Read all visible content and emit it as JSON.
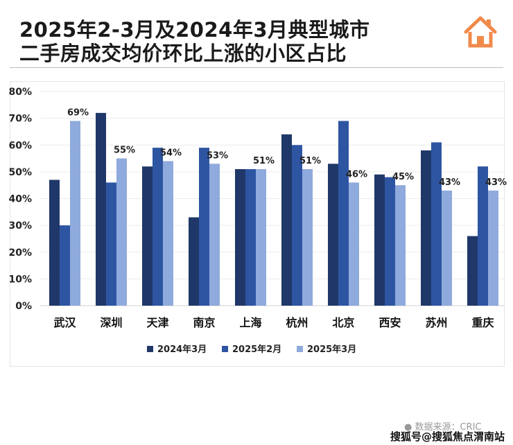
{
  "header": {
    "title_line1": "2025年2-3月及2024年3月典型城市",
    "title_line2": "二手房成交均价环比上涨的小区占比",
    "logo_icon": "house-icon"
  },
  "footer": {
    "source": "● 数据来源：CRIC",
    "watermark": "搜狐号@搜狐焦点渭南站"
  },
  "colors": {
    "s2024_3": "#1f3869",
    "s2025_2": "#2e55a2",
    "s2025_3": "#8faadc",
    "logo": "#f08a4b"
  },
  "chart_data": {
    "type": "bar",
    "title": "2025年2-3月及2024年3月典型城市二手房成交均价环比上涨的小区占比",
    "categories": [
      "武汉",
      "深圳",
      "天津",
      "南京",
      "上海",
      "杭州",
      "北京",
      "西安",
      "苏州",
      "重庆"
    ],
    "series": [
      {
        "name": "2024年3月",
        "values": [
          47,
          72,
          52,
          33,
          51,
          64,
          53,
          49,
          58,
          26
        ]
      },
      {
        "name": "2025年2月",
        "values": [
          30,
          46,
          59,
          59,
          51,
          60,
          69,
          48,
          61,
          52
        ]
      },
      {
        "name": "2025年3月",
        "values": [
          69,
          55,
          54,
          53,
          51,
          51,
          46,
          45,
          43,
          43
        ]
      }
    ],
    "data_labels": [
      "69%",
      "55%",
      "54%",
      "53%",
      "51%",
      "51%",
      "46%",
      "45%",
      "43%",
      "43%"
    ],
    "yticks": [
      "0%",
      "10%",
      "20%",
      "30%",
      "40%",
      "50%",
      "60%",
      "70%",
      "80%"
    ],
    "ylim": [
      0,
      80
    ],
    "grid": true,
    "legend": "bottom",
    "xlabel": "",
    "ylabel": ""
  }
}
